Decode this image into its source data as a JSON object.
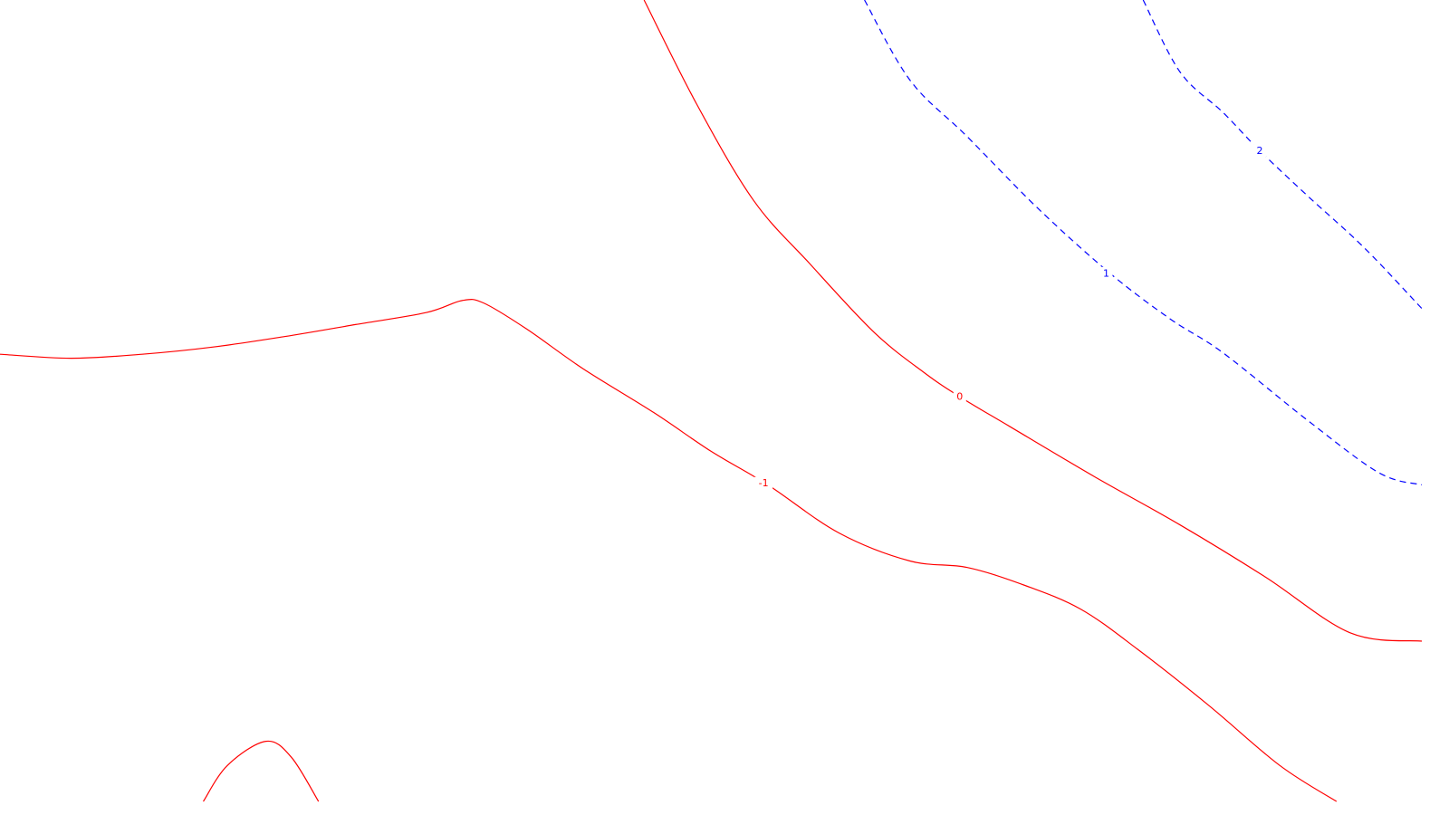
{
  "chart_data": {
    "type": "contour",
    "title": "",
    "xlabel": "",
    "ylabel": "",
    "grid": false,
    "legend": "none",
    "colors": {
      "negative": "#ff0000",
      "zero": "#ff0000",
      "positive": "#0000ff"
    },
    "contours": [
      {
        "level": -1,
        "label": "-1",
        "style": "solid",
        "color": "#ff0000",
        "segments": [
          [
            [
              0,
              0.558
            ],
            [
              0.05,
              0.553
            ],
            [
              0.1,
              0.558
            ],
            [
              0.15,
              0.567
            ],
            [
              0.2,
              0.58
            ],
            [
              0.25,
              0.595
            ],
            [
              0.3,
              0.61
            ],
            [
              0.325,
              0.625
            ],
            [
              0.34,
              0.622
            ],
            [
              0.37,
              0.59
            ],
            [
              0.41,
              0.54
            ],
            [
              0.46,
              0.485
            ],
            [
              0.5,
              0.437
            ],
            [
              0.54,
              0.395
            ],
            [
              0.59,
              0.335
            ],
            [
              0.64,
              0.3
            ],
            [
              0.68,
              0.292
            ],
            [
              0.72,
              0.27
            ],
            [
              0.76,
              0.24
            ],
            [
              0.8,
              0.19
            ],
            [
              0.85,
              0.12
            ],
            [
              0.9,
              0.045
            ],
            [
              0.94,
              0.0
            ]
          ]
        ],
        "label_at": [
          0.537,
          0.397
        ]
      },
      {
        "level": -1,
        "label": "",
        "style": "solid",
        "color": "#ff0000",
        "segments": [
          [
            [
              0.143,
              0.0
            ],
            [
              0.16,
              0.045
            ],
            [
              0.187,
              0.075
            ],
            [
              0.205,
              0.055
            ],
            [
              0.224,
              0.0
            ]
          ]
        ],
        "label_at": null
      },
      {
        "level": 0,
        "label": "0",
        "style": "solid",
        "color": "#ff0000",
        "segments": [
          [
            [
              0.453,
              1.0
            ],
            [
              0.49,
              0.87
            ],
            [
              0.53,
              0.75
            ],
            [
              0.57,
              0.67
            ],
            [
              0.615,
              0.585
            ],
            [
              0.65,
              0.535
            ],
            [
              0.675,
              0.505
            ],
            [
              0.71,
              0.468
            ],
            [
              0.77,
              0.405
            ],
            [
              0.83,
              0.345
            ],
            [
              0.89,
              0.28
            ],
            [
              0.95,
              0.21
            ],
            [
              1.0,
              0.2
            ]
          ]
        ],
        "label_at": [
          0.675,
          0.505
        ]
      },
      {
        "level": 1,
        "label": "1",
        "style": "dashed",
        "color": "#0000ff",
        "segments": [
          [
            [
              0.608,
              1.0
            ],
            [
              0.64,
              0.9
            ],
            [
              0.68,
              0.83
            ],
            [
              0.73,
              0.74
            ],
            [
              0.78,
              0.66
            ],
            [
              0.823,
              0.602
            ],
            [
              0.86,
              0.56
            ],
            [
              0.92,
              0.475
            ],
            [
              0.97,
              0.41
            ],
            [
              1.0,
              0.395
            ]
          ]
        ],
        "label_at": [
          0.778,
          0.659
        ]
      },
      {
        "level": 2,
        "label": "2",
        "style": "dashed",
        "color": "#0000ff",
        "segments": [
          [
            [
              0.804,
              1.0
            ],
            [
              0.83,
              0.91
            ],
            [
              0.86,
              0.86
            ],
            [
              0.886,
              0.812
            ],
            [
              0.92,
              0.755
            ],
            [
              0.96,
              0.69
            ],
            [
              1.0,
              0.615
            ]
          ]
        ],
        "label_at": [
          0.886,
          0.812
        ]
      }
    ],
    "xlim": [
      0,
      1
    ],
    "ylim": [
      0,
      1
    ]
  }
}
